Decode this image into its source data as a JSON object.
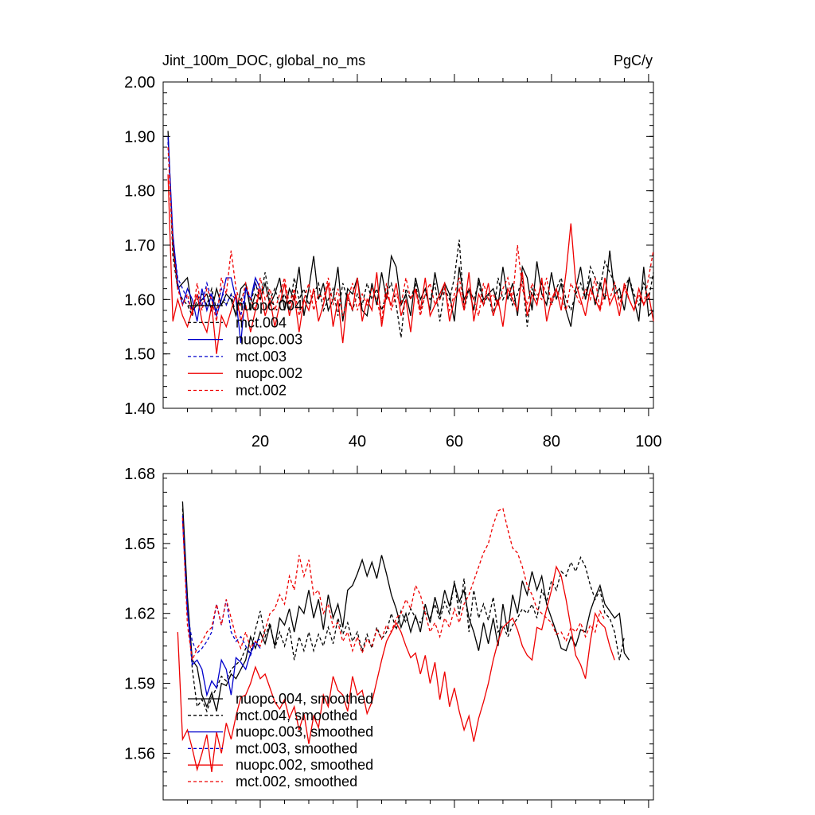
{
  "chart_data": [
    {
      "type": "line",
      "title": "Jint_100m_DOC, global_no_ms",
      "units": "PgC/y",
      "xlabel": "",
      "ylabel": "",
      "xlim": [
        0,
        101
      ],
      "ylim": [
        1.4,
        2.0
      ],
      "x_ticks": [
        20,
        40,
        60,
        80,
        100
      ],
      "y_ticks": [
        "1.40",
        "1.50",
        "1.60",
        "1.70",
        "1.80",
        "1.90",
        "2.00"
      ],
      "grid": false,
      "legend_position": "lower-left",
      "series": [
        {
          "name": "nuopc.004",
          "color": "#000000",
          "dash": "solid",
          "x_start": 1,
          "values": [
            1.91,
            1.7,
            1.62,
            1.63,
            1.64,
            1.58,
            1.59,
            1.6,
            1.61,
            1.58,
            1.62,
            1.59,
            1.61,
            1.6,
            1.57,
            1.62,
            1.63,
            1.58,
            1.61,
            1.6,
            1.63,
            1.59,
            1.61,
            1.64,
            1.58,
            1.62,
            1.6,
            1.66,
            1.57,
            1.62,
            1.68,
            1.6,
            1.63,
            1.58,
            1.6,
            1.66,
            1.56,
            1.62,
            1.61,
            1.64,
            1.58,
            1.57,
            1.63,
            1.59,
            1.65,
            1.6,
            1.68,
            1.66,
            1.59,
            1.61,
            1.57,
            1.64,
            1.6,
            1.62,
            1.58,
            1.65,
            1.6,
            1.63,
            1.61,
            1.56,
            1.66,
            1.6,
            1.62,
            1.58,
            1.64,
            1.6,
            1.61,
            1.62,
            1.59,
            1.66,
            1.6,
            1.63,
            1.57,
            1.66,
            1.64,
            1.58,
            1.67,
            1.61,
            1.59,
            1.65,
            1.6,
            1.63,
            1.58,
            1.55,
            1.62,
            1.66,
            1.6,
            1.64,
            1.59,
            1.63,
            1.6,
            1.69,
            1.61,
            1.62,
            1.58,
            1.64,
            1.6,
            1.56,
            1.66,
            1.57,
            1.58
          ]
        },
        {
          "name": "mct.004",
          "color": "#000000",
          "dash": "dashed",
          "x_start": 1,
          "values": [
            1.9,
            1.68,
            1.62,
            1.6,
            1.59,
            1.57,
            1.6,
            1.61,
            1.59,
            1.62,
            1.58,
            1.6,
            1.59,
            1.61,
            1.57,
            1.6,
            1.62,
            1.59,
            1.63,
            1.6,
            1.65,
            1.6,
            1.62,
            1.59,
            1.61,
            1.58,
            1.64,
            1.6,
            1.62,
            1.59,
            1.61,
            1.63,
            1.58,
            1.6,
            1.62,
            1.57,
            1.63,
            1.6,
            1.58,
            1.61,
            1.59,
            1.63,
            1.6,
            1.62,
            1.58,
            1.61,
            1.63,
            1.59,
            1.53,
            1.62,
            1.6,
            1.63,
            1.58,
            1.61,
            1.6,
            1.63,
            1.56,
            1.62,
            1.6,
            1.64,
            1.71,
            1.58,
            1.62,
            1.6,
            1.63,
            1.59,
            1.61,
            1.57,
            1.64,
            1.6,
            1.62,
            1.59,
            1.61,
            1.64,
            1.55,
            1.62,
            1.6,
            1.63,
            1.61,
            1.59,
            1.62,
            1.64,
            1.6,
            1.58,
            1.61,
            1.63,
            1.6,
            1.66,
            1.64,
            1.62,
            1.67,
            1.65,
            1.63,
            1.6,
            1.62,
            1.64,
            1.61,
            1.59,
            1.63,
            1.6,
            1.65
          ]
        },
        {
          "name": "nuopc.003",
          "color": "#0000cc",
          "dash": "solid",
          "x_start": 1,
          "values": [
            1.9,
            1.72,
            1.63,
            1.59,
            1.62,
            1.6,
            1.56,
            1.62,
            1.58,
            1.61,
            1.57,
            1.6,
            1.64,
            1.64,
            1.6,
            1.52,
            1.62,
            1.6,
            1.64,
            1.62
          ]
        },
        {
          "name": "mct.003",
          "color": "#0000cc",
          "dash": "dashed",
          "x_start": 1,
          "values": [
            1.89,
            1.71,
            1.64,
            1.62,
            1.6,
            1.58,
            1.61,
            1.59,
            1.63,
            1.6,
            1.58,
            1.62,
            1.59,
            1.61,
            1.6,
            1.57,
            1.62,
            1.6,
            1.63,
            1.61
          ]
        },
        {
          "name": "nuopc.002",
          "color": "#ee0000",
          "dash": "solid",
          "x_start": 1,
          "values": [
            1.83,
            1.56,
            1.6,
            1.57,
            1.55,
            1.58,
            1.61,
            1.56,
            1.54,
            1.59,
            1.5,
            1.57,
            1.55,
            1.58,
            1.61,
            1.56,
            1.59,
            1.54,
            1.58,
            1.62,
            1.57,
            1.6,
            1.55,
            1.59,
            1.63,
            1.57,
            1.61,
            1.54,
            1.6,
            1.58,
            1.62,
            1.56,
            1.59,
            1.63,
            1.55,
            1.6,
            1.52,
            1.61,
            1.58,
            1.64,
            1.56,
            1.6,
            1.58,
            1.65,
            1.55,
            1.61,
            1.59,
            1.63,
            1.57,
            1.6,
            1.54,
            1.62,
            1.58,
            1.64,
            1.57,
            1.59,
            1.61,
            1.63,
            1.56,
            1.6,
            1.62,
            1.58,
            1.65,
            1.56,
            1.61,
            1.59,
            1.63,
            1.57,
            1.6,
            1.55,
            1.62,
            1.6,
            1.58,
            1.65,
            1.57,
            1.61,
            1.59,
            1.64,
            1.56,
            1.6,
            1.62,
            1.58,
            1.65,
            1.74,
            1.63,
            1.6,
            1.57,
            1.62,
            1.6,
            1.58,
            1.64,
            1.59,
            1.61,
            1.57,
            1.63,
            1.6,
            1.58,
            1.62,
            1.59,
            1.61,
            1.56
          ]
        },
        {
          "name": "mct.002",
          "color": "#ee0000",
          "dash": "dashed",
          "x_start": 1,
          "values": [
            1.88,
            1.7,
            1.62,
            1.59,
            1.61,
            1.57,
            1.63,
            1.58,
            1.62,
            1.6,
            1.56,
            1.64,
            1.61,
            1.69,
            1.62,
            1.59,
            1.63,
            1.6,
            1.58,
            1.64,
            1.6,
            1.62,
            1.58,
            1.61,
            1.64,
            1.59,
            1.62,
            1.57,
            1.6,
            1.63,
            1.58,
            1.61,
            1.6,
            1.64,
            1.59,
            1.62,
            1.57,
            1.6,
            1.63,
            1.58,
            1.61,
            1.59,
            1.62,
            1.6,
            1.56,
            1.63,
            1.58,
            1.61,
            1.59,
            1.64,
            1.6,
            1.62,
            1.57,
            1.61,
            1.63,
            1.59,
            1.6,
            1.62,
            1.58,
            1.61,
            1.64,
            1.59,
            1.62,
            1.6,
            1.57,
            1.63,
            1.6,
            1.61,
            1.59,
            1.62,
            1.64,
            1.6,
            1.7,
            1.62,
            1.59,
            1.63,
            1.61,
            1.6,
            1.64,
            1.59,
            1.62,
            1.6,
            1.58,
            1.63,
            1.61,
            1.59,
            1.62,
            1.6,
            1.64,
            1.58,
            1.61,
            1.6,
            1.63,
            1.59,
            1.62,
            1.6,
            1.58,
            1.61,
            1.59,
            1.64,
            1.69
          ]
        }
      ],
      "legend": [
        "nuopc.004",
        "mct.004",
        "nuopc.003",
        "mct.003",
        "nuopc.002",
        "mct.002"
      ]
    },
    {
      "type": "line",
      "title": "",
      "xlabel": "",
      "ylabel": "",
      "xlim": [
        0,
        101
      ],
      "ylim": [
        1.54,
        1.68
      ],
      "y_ticks": [
        "1.56",
        "1.59",
        "1.62",
        "1.65",
        "1.68"
      ],
      "grid": false,
      "legend_position": "lower-left",
      "series": [
        {
          "name": "nuopc.004, smoothed",
          "color": "#000000",
          "dash": "solid",
          "x_start": 4,
          "values": [
            1.668,
            1.627,
            1.6,
            1.597,
            1.585,
            1.58,
            1.586,
            1.578,
            1.59,
            1.589,
            1.594,
            1.592,
            1.596,
            1.6,
            1.61,
            1.605,
            1.612,
            1.607,
            1.615,
            1.606,
            1.618,
            1.615,
            1.622,
            1.612,
            1.623,
            1.62,
            1.63,
            1.618,
            1.626,
            1.613,
            1.628,
            1.618,
            1.624,
            1.614,
            1.63,
            1.632,
            1.637,
            1.643,
            1.636,
            1.642,
            1.635,
            1.645,
            1.637,
            1.628,
            1.622,
            1.614,
            1.62,
            1.612,
            1.619,
            1.612,
            1.624,
            1.616,
            1.627,
            1.619,
            1.63,
            1.623,
            1.633,
            1.625,
            1.63,
            1.618,
            1.612,
            1.604,
            1.616,
            1.607,
            1.618,
            1.606,
            1.624,
            1.612,
            1.628,
            1.62,
            1.634,
            1.628,
            1.638,
            1.63,
            1.636,
            1.624,
            1.618,
            1.612,
            1.605,
            1.604,
            1.61,
            1.606,
            1.613,
            1.612,
            1.621,
            1.627,
            1.632,
            1.624,
            1.621,
            1.618,
            1.62,
            1.603,
            1.6
          ]
        },
        {
          "name": "mct.004, smoothed",
          "color": "#000000",
          "dash": "dashed",
          "x_start": 4,
          "values": [
            1.665,
            1.625,
            1.596,
            1.58,
            1.583,
            1.578,
            1.584,
            1.588,
            1.593,
            1.591,
            1.596,
            1.598,
            1.6,
            1.605,
            1.603,
            1.613,
            1.621,
            1.61,
            1.616,
            1.605,
            1.612,
            1.606,
            1.614,
            1.6,
            1.61,
            1.604,
            1.612,
            1.604,
            1.611,
            1.606,
            1.614,
            1.607,
            1.618,
            1.611,
            1.616,
            1.608,
            1.612,
            1.604,
            1.611,
            1.605,
            1.614,
            1.609,
            1.612,
            1.62,
            1.613,
            1.621,
            1.616,
            1.622,
            1.618,
            1.616,
            1.621,
            1.618,
            1.624,
            1.617,
            1.625,
            1.62,
            1.634,
            1.619,
            1.635,
            1.612,
            1.63,
            1.618,
            1.624,
            1.617,
            1.627,
            1.612,
            1.615,
            1.61,
            1.615,
            1.618,
            1.622,
            1.62,
            1.624,
            1.618,
            1.63,
            1.625,
            1.634,
            1.63,
            1.638,
            1.636,
            1.642,
            1.638,
            1.644,
            1.64,
            1.632,
            1.626,
            1.63,
            1.62,
            1.618,
            1.612,
            1.6,
            1.61
          ]
        },
        {
          "name": "nuopc.003, smoothed",
          "color": "#0000cc",
          "dash": "solid",
          "x_start": 4,
          "values": [
            1.66,
            1.622,
            1.598,
            1.6,
            1.596,
            1.585,
            1.591,
            1.588,
            1.6,
            1.596,
            1.585,
            1.601,
            1.599,
            1.596,
            1.603,
            1.608,
            1.605
          ]
        },
        {
          "name": "mct.003, smoothed",
          "color": "#0000cc",
          "dash": "dashed",
          "x_start": 4,
          "values": [
            1.662,
            1.62,
            1.608,
            1.603,
            1.605,
            1.608,
            1.612,
            1.624,
            1.615,
            1.626,
            1.612,
            1.608,
            1.61,
            1.606,
            1.602,
            1.608,
            1.609
          ]
        },
        {
          "name": "nuopc.002, smoothed",
          "color": "#ee0000",
          "dash": "solid",
          "x_start": 3,
          "values": [
            1.612,
            1.566,
            1.57,
            1.562,
            1.553,
            1.56,
            1.568,
            1.552,
            1.569,
            1.56,
            1.573,
            1.566,
            1.576,
            1.584,
            1.585,
            1.59,
            1.597,
            1.592,
            1.594,
            1.588,
            1.582,
            1.579,
            1.583,
            1.575,
            1.58,
            1.57,
            1.577,
            1.564,
            1.576,
            1.571,
            1.585,
            1.58,
            1.593,
            1.587,
            1.585,
            1.578,
            1.593,
            1.585,
            1.587,
            1.577,
            1.582,
            1.591,
            1.6,
            1.608,
            1.612,
            1.616,
            1.612,
            1.606,
            1.601,
            1.603,
            1.594,
            1.602,
            1.59,
            1.599,
            1.583,
            1.595,
            1.58,
            1.588,
            1.578,
            1.57,
            1.576,
            1.565,
            1.575,
            1.582,
            1.59,
            1.6,
            1.608,
            1.614,
            1.616,
            1.618,
            1.613,
            1.606,
            1.602,
            1.6,
            1.614,
            1.613,
            1.622,
            1.63,
            1.64,
            1.636,
            1.626,
            1.614,
            1.602,
            1.598,
            1.592,
            1.608,
            1.62,
            1.616,
            1.614,
            1.606,
            1.6
          ]
        },
        {
          "name": "mct.002, smoothed",
          "color": "#ee0000",
          "dash": "dashed",
          "x_start": 4,
          "values": [
            1.661,
            1.615,
            1.6,
            1.605,
            1.608,
            1.612,
            1.614,
            1.624,
            1.615,
            1.626,
            1.618,
            1.61,
            1.605,
            1.612,
            1.605,
            1.608,
            1.606,
            1.613,
            1.62,
            1.622,
            1.628,
            1.624,
            1.636,
            1.63,
            1.645,
            1.636,
            1.643,
            1.628,
            1.63,
            1.62,
            1.624,
            1.614,
            1.616,
            1.608,
            1.612,
            1.604,
            1.61,
            1.603,
            1.609,
            1.606,
            1.613,
            1.609,
            1.615,
            1.612,
            1.618,
            1.62,
            1.626,
            1.622,
            1.632,
            1.628,
            1.62,
            1.612,
            1.616,
            1.61,
            1.618,
            1.614,
            1.622,
            1.616,
            1.624,
            1.628,
            1.634,
            1.64,
            1.646,
            1.65,
            1.658,
            1.664,
            1.665,
            1.656,
            1.648,
            1.646,
            1.64,
            1.632,
            1.628,
            1.622,
            1.62,
            1.618,
            1.616,
            1.611,
            1.612,
            1.608,
            1.614,
            1.612,
            1.616,
            1.61,
            1.615,
            1.612,
            1.621,
            1.617
          ]
        }
      ],
      "legend": [
        "nuopc.004, smoothed",
        "mct.004, smoothed",
        "nuopc.003, smoothed",
        "mct.003, smoothed",
        "nuopc.002, smoothed",
        "mct.002, smoothed"
      ]
    }
  ]
}
